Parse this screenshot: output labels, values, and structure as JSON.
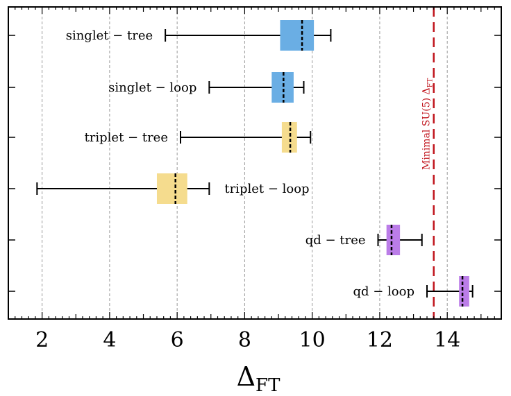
{
  "chart_data": {
    "type": "box",
    "xlabel": {
      "main": "Δ",
      "sub": "FT"
    },
    "xlim": [
      1,
      15.6
    ],
    "xticks": [
      2,
      4,
      6,
      8,
      10,
      12,
      14
    ],
    "xtick_labels": [
      "2",
      "4",
      "6",
      "8",
      "10",
      "12",
      "14"
    ],
    "grid": "vertical dashed",
    "reference_line": {
      "x": 13.6,
      "label_main": "Minimal SU(5) Δ",
      "label_sub": "FT",
      "color": "#c0141c"
    },
    "rows": [
      {
        "label": "singlet − tree",
        "label_side": "left",
        "min": 5.65,
        "q1": 9.05,
        "median": 9.7,
        "q3": 10.05,
        "max": 10.55,
        "color": "#6aaee4"
      },
      {
        "label": "singlet − loop",
        "label_side": "left",
        "min": 6.95,
        "q1": 8.8,
        "median": 9.15,
        "q3": 9.45,
        "max": 9.75,
        "color": "#6aaee4"
      },
      {
        "label": "triplet − tree",
        "label_side": "left",
        "min": 6.1,
        "q1": 9.1,
        "median": 9.35,
        "q3": 9.55,
        "max": 9.95,
        "color": "#f5dc8e"
      },
      {
        "label": "triplet − loop",
        "label_side": "right",
        "min": 1.85,
        "q1": 5.4,
        "median": 5.95,
        "q3": 6.3,
        "max": 6.95,
        "color": "#f5dc8e"
      },
      {
        "label": "qd − tree",
        "label_side": "left",
        "min": 11.95,
        "q1": 12.2,
        "median": 12.35,
        "q3": 12.6,
        "max": 13.25,
        "color": "#bb7de8"
      },
      {
        "label": "qd − loop",
        "label_side": "left",
        "min": 13.4,
        "q1": 14.35,
        "median": 14.45,
        "q3": 14.65,
        "max": 14.75,
        "color": "#bb7de8"
      }
    ]
  }
}
